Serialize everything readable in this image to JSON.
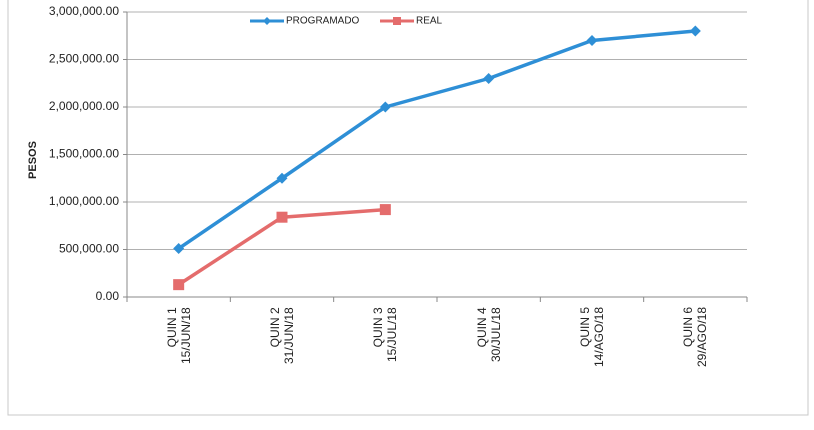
{
  "chart_data": {
    "type": "line",
    "y_label": "PESOS",
    "categories": [
      "QUIN 1\n15/JUN/18",
      "QUIN 2\n31/JUN/18",
      "QUIN 3\n15/JUL/18",
      "QUIN 4\n30/JUL/18",
      "QUIN 5\n14/AGO/18",
      "QUIN 6\n29/AGO/18"
    ],
    "series": [
      {
        "name": "PROGRAMADO",
        "color": "#2e8fd6",
        "marker": "diamond",
        "values": [
          510000,
          1250000,
          2000000,
          2300000,
          2700000,
          2800000
        ]
      },
      {
        "name": "REAL",
        "color": "#e46c6c",
        "marker": "square",
        "values": [
          130000,
          840000,
          920000,
          null,
          null,
          null
        ]
      }
    ],
    "ylim": [
      0,
      3000000
    ],
    "yticks": [
      {
        "value": 0,
        "label": "0.00"
      },
      {
        "value": 500000,
        "label": "500,000.00"
      },
      {
        "value": 1000000,
        "label": "1,000,000.00"
      },
      {
        "value": 1500000,
        "label": "1,500,000.00"
      },
      {
        "value": 2000000,
        "label": "2,000,000.00"
      },
      {
        "value": 2500000,
        "label": "2,500,000.00"
      },
      {
        "value": 3000000,
        "label": "3,000,000.00"
      }
    ],
    "grid": true,
    "legend": "top"
  }
}
